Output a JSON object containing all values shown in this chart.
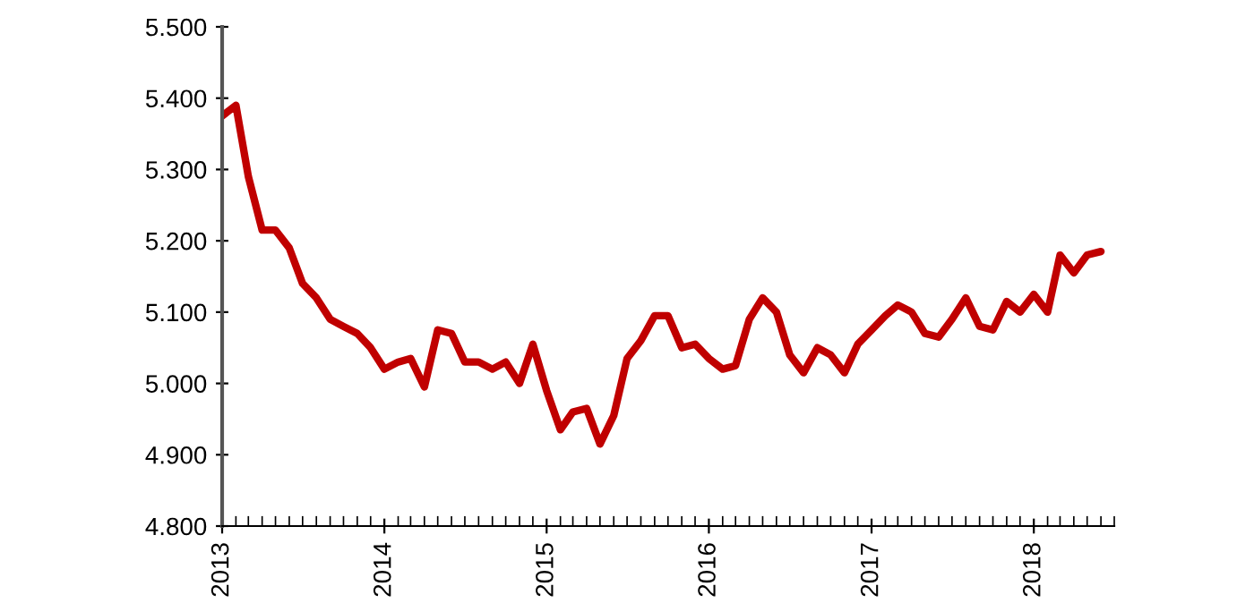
{
  "chart_data": {
    "type": "line",
    "line_style": "solid",
    "marker": "none",
    "grid": false,
    "x": [
      "2013-01",
      "2013-02",
      "2013-03",
      "2013-04",
      "2013-05",
      "2013-06",
      "2013-07",
      "2013-08",
      "2013-09",
      "2013-10",
      "2013-11",
      "2013-12",
      "2014-01",
      "2014-02",
      "2014-03",
      "2014-04",
      "2014-05",
      "2014-06",
      "2014-07",
      "2014-08",
      "2014-09",
      "2014-10",
      "2014-11",
      "2014-12",
      "2015-01",
      "2015-02",
      "2015-03",
      "2015-04",
      "2015-05",
      "2015-06",
      "2015-07",
      "2015-08",
      "2015-09",
      "2015-10",
      "2015-11",
      "2015-12",
      "2016-01",
      "2016-02",
      "2016-03",
      "2016-04",
      "2016-05",
      "2016-06",
      "2016-07",
      "2016-08",
      "2016-09",
      "2016-10",
      "2016-11",
      "2016-12",
      "2017-01",
      "2017-02",
      "2017-03",
      "2017-04",
      "2017-05",
      "2017-06",
      "2017-07",
      "2017-08",
      "2017-09",
      "2017-10",
      "2017-11",
      "2017-12",
      "2018-01",
      "2018-02",
      "2018-03",
      "2018-04",
      "2018-05",
      "2018-06"
    ],
    "series": [
      {
        "color": "#c00000",
        "values": [
          5375,
          5390,
          5290,
          5215,
          5215,
          5190,
          5140,
          5120,
          5090,
          5080,
          5070,
          5050,
          5020,
          5030,
          5035,
          4995,
          5075,
          5070,
          5030,
          5030,
          5020,
          5030,
          5000,
          5055,
          4990,
          4935,
          4960,
          4965,
          4915,
          4955,
          5035,
          5060,
          5095,
          5095,
          5050,
          5055,
          5035,
          5020,
          5025,
          5090,
          5120,
          5100,
          5040,
          5015,
          5050,
          5040,
          5015,
          5055,
          5075,
          5095,
          5110,
          5100,
          5070,
          5065,
          5090,
          5120,
          5080,
          5075,
          5115,
          5100,
          5125,
          5100,
          5180,
          5155,
          5180,
          5185
        ]
      }
    ],
    "xlim": [
      "2013-01",
      "2018-07"
    ],
    "xticks": [
      "2013",
      "2014",
      "2015",
      "2016",
      "2017",
      "2018"
    ],
    "ylim": [
      4800,
      5500
    ],
    "yticks": [
      {
        "value": 4800,
        "label": "4.800"
      },
      {
        "value": 4900,
        "label": "4.900"
      },
      {
        "value": 5000,
        "label": "5.000"
      },
      {
        "value": 5100,
        "label": "5.100"
      },
      {
        "value": 5200,
        "label": "5.200"
      },
      {
        "value": 5300,
        "label": "5.300"
      },
      {
        "value": 5400,
        "label": "5.400"
      },
      {
        "value": 5500,
        "label": "5.500"
      }
    ]
  }
}
